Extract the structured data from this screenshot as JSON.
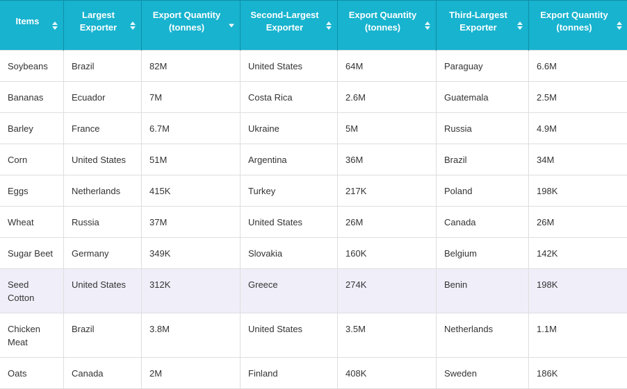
{
  "table": {
    "headers": [
      {
        "label": "Items",
        "sort": "both"
      },
      {
        "label": "Largest Exporter",
        "sort": "both"
      },
      {
        "label": "Export Quantity (tonnes)",
        "sort": "desc"
      },
      {
        "label": "Second-Largest Exporter",
        "sort": "both"
      },
      {
        "label": "Export Quantity (tonnes)",
        "sort": "both"
      },
      {
        "label": "Third-Largest Exporter",
        "sort": "both"
      },
      {
        "label": "Export Quantity (tonnes)",
        "sort": "both"
      }
    ],
    "rows": [
      [
        "Soybeans",
        "Brazil",
        "82M",
        "United States",
        "64M",
        "Paraguay",
        "6.6M"
      ],
      [
        "Bananas",
        "Ecuador",
        "7M",
        "Costa Rica",
        "2.6M",
        "Guatemala",
        "2.5M"
      ],
      [
        "Barley",
        "France",
        "6.7M",
        "Ukraine",
        "5M",
        "Russia",
        "4.9M"
      ],
      [
        "Corn",
        "United States",
        "51M",
        "Argentina",
        "36M",
        "Brazil",
        "34M"
      ],
      [
        "Eggs",
        "Netherlands",
        "415K",
        "Turkey",
        "217K",
        "Poland",
        "198K"
      ],
      [
        "Wheat",
        "Russia",
        "37M",
        "United States",
        "26M",
        "Canada",
        "26M"
      ],
      [
        "Sugar Beet",
        "Germany",
        "349K",
        "Slovakia",
        "160K",
        "Belgium",
        "142K"
      ],
      [
        "Seed Cotton",
        "United States",
        "312K",
        "Greece",
        "274K",
        "Benin",
        "198K"
      ],
      [
        "Chicken Meat",
        "Brazil",
        "3.8M",
        "United States",
        "3.5M",
        "Netherlands",
        "1.1M"
      ],
      [
        "Oats",
        "Canada",
        "2M",
        "Finland",
        "408K",
        "Sweden",
        "186K"
      ]
    ],
    "highlighted_row": 7
  },
  "colors": {
    "header_bg": "#17b3cf",
    "header_text": "#ffffff",
    "highlight_row_bg": "#f0eef9",
    "border": "#dedede"
  }
}
